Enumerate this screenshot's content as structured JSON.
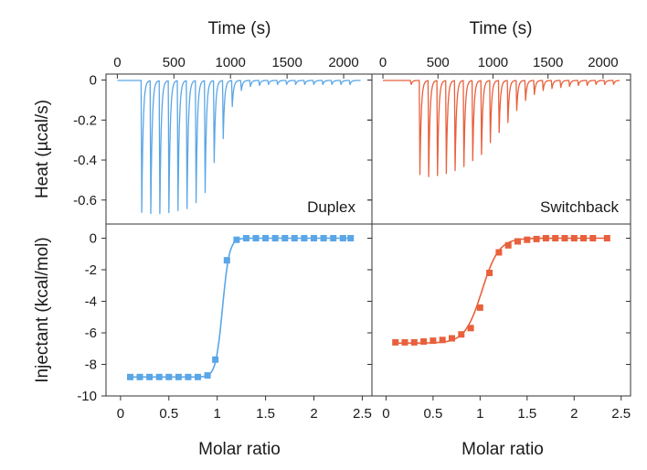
{
  "colors": {
    "duplex": "#5aa6e6",
    "switchback": "#e8603c",
    "frame": "#333333"
  },
  "chart_data": [
    {
      "id": "thermogram-duplex",
      "type": "line",
      "panel_label": "Duplex",
      "xlabel": "Time (s)",
      "ylabel": "Heat (µcal/s)",
      "xlim": [
        -100,
        2250
      ],
      "ylim": [
        -0.72,
        0.03
      ],
      "xticks": [
        "0",
        "500",
        "1000",
        "1500",
        "2000"
      ],
      "yticks": [
        "0",
        "-0.2",
        "-0.4",
        "-0.6"
      ],
      "baseline_start": 0,
      "end_time": 2150,
      "injection_times": [
        210,
        290,
        370,
        450,
        530,
        610,
        690,
        770,
        850,
        930,
        1010,
        1090,
        1170,
        1250,
        1330,
        1410,
        1490,
        1570,
        1650,
        1730,
        1810,
        1890,
        1970,
        2050
      ],
      "peak_heights": [
        -0.66,
        -0.665,
        -0.665,
        -0.66,
        -0.65,
        -0.64,
        -0.61,
        -0.56,
        -0.41,
        -0.29,
        -0.13,
        -0.05,
        -0.03,
        -0.025,
        -0.02,
        -0.02,
        -0.02,
        -0.02,
        -0.02,
        -0.02,
        -0.02,
        -0.02,
        -0.02,
        -0.02
      ]
    },
    {
      "id": "thermogram-switchback",
      "type": "line",
      "panel_label": "Switchback",
      "xlabel": "Time (s)",
      "xlim": [
        -100,
        2250
      ],
      "ylim": [
        -0.72,
        0.03
      ],
      "xticks": [
        "0",
        "500",
        "1000",
        "1500",
        "2000"
      ],
      "baseline_start": 0,
      "end_time": 2150,
      "injection_times": [
        250,
        330,
        410,
        490,
        570,
        650,
        730,
        810,
        890,
        970,
        1050,
        1130,
        1210,
        1290,
        1370,
        1450,
        1530,
        1610,
        1690,
        1770,
        1850,
        1930,
        2010,
        2090
      ],
      "peak_heights": [
        -0.02,
        -0.47,
        -0.48,
        -0.475,
        -0.465,
        -0.45,
        -0.43,
        -0.4,
        -0.37,
        -0.31,
        -0.26,
        -0.21,
        -0.15,
        -0.1,
        -0.07,
        -0.05,
        -0.04,
        -0.035,
        -0.03,
        -0.025,
        -0.025,
        -0.02,
        -0.02,
        -0.02
      ]
    },
    {
      "id": "binding-duplex",
      "type": "scatter",
      "xlabel": "Molar ratio",
      "ylabel": "Injectant (kcal/mol)",
      "xlim": [
        -0.15,
        2.6
      ],
      "ylim": [
        -10,
        0.9
      ],
      "xticks": [
        "0",
        "0.5",
        "1",
        "1.5",
        "2",
        "2.5"
      ],
      "yticks": [
        "0",
        "-2",
        "-4",
        "-6",
        "-8",
        "-10"
      ],
      "x": [
        0.1,
        0.2,
        0.3,
        0.4,
        0.5,
        0.6,
        0.7,
        0.8,
        0.9,
        0.98,
        1.1,
        1.2,
        1.3,
        1.4,
        1.5,
        1.6,
        1.7,
        1.8,
        1.9,
        2.0,
        2.1,
        2.2,
        2.3,
        2.38
      ],
      "y": [
        -8.8,
        -8.8,
        -8.8,
        -8.8,
        -8.8,
        -8.8,
        -8.8,
        -8.8,
        -8.7,
        -7.7,
        -1.4,
        -0.1,
        0.0,
        0.0,
        0.0,
        0.0,
        0.0,
        0.0,
        0.0,
        0.0,
        0.0,
        0.0,
        0.0,
        0.0
      ],
      "fit": {
        "bottom": -8.8,
        "top": 0.0,
        "midpoint": 1.055,
        "width": 0.035,
        "x_start": 0.1,
        "x_end": 2.38
      }
    },
    {
      "id": "binding-switchback",
      "type": "scatter",
      "xlabel": "Molar ratio",
      "xlim": [
        -0.15,
        2.6
      ],
      "ylim": [
        -10,
        0.9
      ],
      "xticks": [
        "0",
        "0.5",
        "1",
        "1.5",
        "2",
        "2.5"
      ],
      "x": [
        0.1,
        0.2,
        0.3,
        0.4,
        0.5,
        0.6,
        0.7,
        0.8,
        0.9,
        1.0,
        1.1,
        1.2,
        1.3,
        1.4,
        1.5,
        1.6,
        1.7,
        1.8,
        1.9,
        2.0,
        2.1,
        2.2,
        2.35
      ],
      "y": [
        -6.6,
        -6.6,
        -6.6,
        -6.55,
        -6.5,
        -6.45,
        -6.35,
        -6.1,
        -5.7,
        -4.4,
        -2.2,
        -0.9,
        -0.45,
        -0.2,
        -0.1,
        -0.05,
        0.0,
        0.0,
        0.0,
        0.0,
        0.0,
        0.0,
        0.0
      ],
      "fit": {
        "bottom": -6.65,
        "top": 0.0,
        "midpoint": 1.02,
        "width": 0.09,
        "x_start": 0.1,
        "x_end": 2.35
      }
    }
  ]
}
